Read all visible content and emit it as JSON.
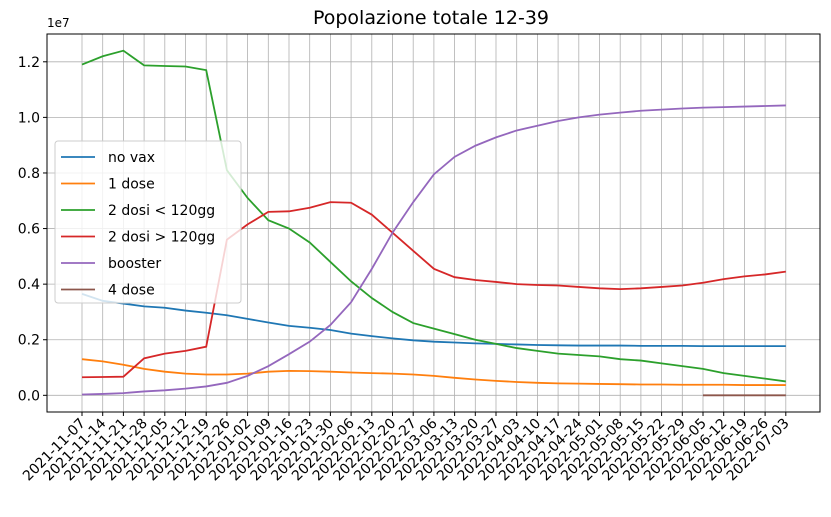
{
  "chart_data": {
    "type": "line",
    "title": "Popolazione totale 12-39",
    "y_offset_label": "1e7",
    "categories": [
      "2021-11-07",
      "2021-11-14",
      "2021-11-21",
      "2021-11-28",
      "2021-12-05",
      "2021-12-12",
      "2021-12-19",
      "2021-12-26",
      "2022-01-02",
      "2022-01-09",
      "2022-01-16",
      "2022-01-23",
      "2022-01-30",
      "2022-02-06",
      "2022-02-13",
      "2022-02-20",
      "2022-02-27",
      "2022-03-06",
      "2022-03-13",
      "2022-03-20",
      "2022-03-27",
      "2022-04-03",
      "2022-04-10",
      "2022-04-17",
      "2022-04-24",
      "2022-05-01",
      "2022-05-08",
      "2022-05-15",
      "2022-05-22",
      "2022-05-29",
      "2022-06-05",
      "2022-06-12",
      "2022-06-19",
      "2022-06-26",
      "2022-07-03"
    ],
    "series": [
      {
        "name": "no vax",
        "color": "#1f77b4",
        "values": [
          0.365,
          0.34,
          0.33,
          0.32,
          0.315,
          0.305,
          0.297,
          0.288,
          0.275,
          0.262,
          0.25,
          0.243,
          0.235,
          0.222,
          0.213,
          0.205,
          0.198,
          0.193,
          0.19,
          0.187,
          0.185,
          0.183,
          0.181,
          0.18,
          0.179,
          0.179,
          0.179,
          0.178,
          0.178,
          0.178,
          0.177,
          0.177,
          0.177,
          0.177,
          0.177
        ]
      },
      {
        "name": "1 dose",
        "color": "#ff7f0e",
        "values": [
          0.13,
          0.122,
          0.11,
          0.095,
          0.085,
          0.078,
          0.075,
          0.075,
          0.078,
          0.085,
          0.088,
          0.087,
          0.085,
          0.082,
          0.08,
          0.078,
          0.075,
          0.07,
          0.063,
          0.057,
          0.052,
          0.048,
          0.045,
          0.043,
          0.042,
          0.041,
          0.04,
          0.039,
          0.039,
          0.038,
          0.038,
          0.038,
          0.037,
          0.037,
          0.037
        ]
      },
      {
        "name": "2 dosi < 120gg",
        "color": "#2ca02c",
        "values": [
          1.19,
          1.22,
          1.24,
          1.187,
          1.185,
          1.183,
          1.17,
          0.81,
          0.71,
          0.63,
          0.6,
          0.55,
          0.48,
          0.41,
          0.35,
          0.3,
          0.26,
          0.24,
          0.22,
          0.2,
          0.185,
          0.17,
          0.16,
          0.15,
          0.145,
          0.14,
          0.13,
          0.125,
          0.115,
          0.105,
          0.095,
          0.08,
          0.07,
          0.06,
          0.05
        ]
      },
      {
        "name": "2 dosi > 120gg",
        "color": "#d62728",
        "values": [
          0.065,
          0.066,
          0.067,
          0.133,
          0.15,
          0.16,
          0.175,
          0.56,
          0.615,
          0.66,
          0.662,
          0.675,
          0.695,
          0.693,
          0.65,
          0.585,
          0.52,
          0.455,
          0.425,
          0.415,
          0.408,
          0.4,
          0.397,
          0.395,
          0.39,
          0.385,
          0.382,
          0.385,
          0.39,
          0.395,
          0.405,
          0.418,
          0.428,
          0.435,
          0.445
        ]
      },
      {
        "name": "booster",
        "color": "#9467bd",
        "values": [
          0.003,
          0.005,
          0.008,
          0.014,
          0.018,
          0.024,
          0.032,
          0.045,
          0.07,
          0.105,
          0.148,
          0.193,
          0.253,
          0.335,
          0.455,
          0.585,
          0.695,
          0.795,
          0.858,
          0.898,
          0.928,
          0.953,
          0.97,
          0.987,
          1.0,
          1.01,
          1.017,
          1.024,
          1.028,
          1.032,
          1.035,
          1.037,
          1.039,
          1.041,
          1.043
        ]
      },
      {
        "name": "4 dose",
        "color": "#8c564b",
        "values": [
          null,
          null,
          null,
          null,
          null,
          null,
          null,
          null,
          null,
          null,
          null,
          null,
          null,
          null,
          null,
          null,
          null,
          null,
          null,
          null,
          null,
          null,
          null,
          null,
          null,
          null,
          null,
          null,
          null,
          null,
          0,
          0,
          0,
          0,
          0
        ]
      }
    ],
    "ylim": [
      -0.06,
      1.3
    ],
    "yticks": [
      {
        "value": 0,
        "label": "0.0"
      },
      0.2,
      0.4,
      0.6,
      0.8,
      {
        "value": 1,
        "label": "1.0"
      },
      1.2
    ],
    "grid": true,
    "legend": "left"
  }
}
